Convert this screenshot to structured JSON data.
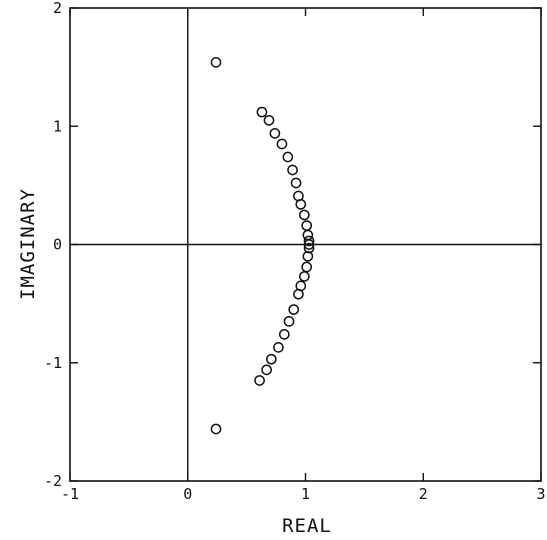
{
  "chart_data": {
    "type": "scatter",
    "xlabel": "REAL",
    "ylabel": "IMAGINARY",
    "xlim": [
      -1,
      3
    ],
    "ylim": [
      -2,
      2
    ],
    "xticks": [
      -1,
      0,
      1,
      2,
      3
    ],
    "yticks": [
      -2,
      -1,
      0,
      1,
      2
    ],
    "xtick_labels": [
      "-1",
      "0",
      "1",
      "2",
      "3"
    ],
    "ytick_labels": [
      "-2",
      "-1",
      "0",
      "1",
      "2"
    ],
    "grid": false,
    "reference_lines": {
      "x": 0,
      "y": 0
    },
    "marker": "open-circle",
    "color": "#111111",
    "points": [
      [
        0.24,
        1.54
      ],
      [
        0.24,
        -1.56
      ],
      [
        0.63,
        1.12
      ],
      [
        0.69,
        1.05
      ],
      [
        0.74,
        0.94
      ],
      [
        0.8,
        0.85
      ],
      [
        0.85,
        0.74
      ],
      [
        0.89,
        0.63
      ],
      [
        0.92,
        0.52
      ],
      [
        0.94,
        0.41
      ],
      [
        0.96,
        0.34
      ],
      [
        0.99,
        0.25
      ],
      [
        1.01,
        0.16
      ],
      [
        1.02,
        0.08
      ],
      [
        1.03,
        0.03
      ],
      [
        1.03,
        0.0
      ],
      [
        1.03,
        -0.03
      ],
      [
        1.02,
        -0.1
      ],
      [
        1.01,
        -0.19
      ],
      [
        0.99,
        -0.27
      ],
      [
        0.96,
        -0.35
      ],
      [
        0.94,
        -0.42
      ],
      [
        0.9,
        -0.55
      ],
      [
        0.86,
        -0.65
      ],
      [
        0.82,
        -0.76
      ],
      [
        0.77,
        -0.87
      ],
      [
        0.71,
        -0.97
      ],
      [
        0.67,
        -1.06
      ],
      [
        0.61,
        -1.15
      ]
    ]
  }
}
